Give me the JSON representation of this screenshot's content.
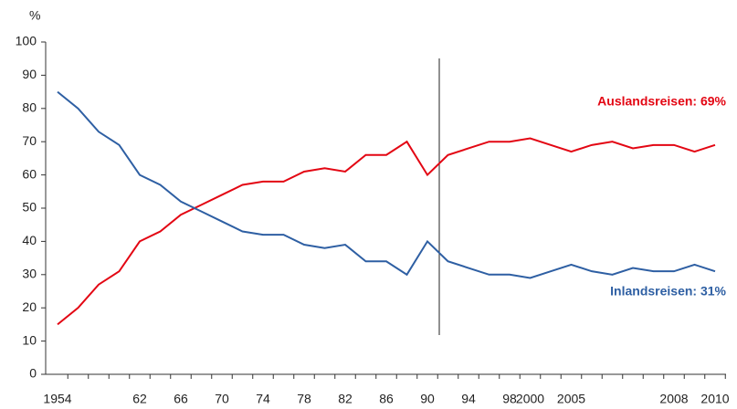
{
  "chart_data": {
    "type": "line",
    "y_label": "%",
    "categories": [
      "1954",
      null,
      null,
      null,
      "62",
      null,
      "66",
      null,
      "70",
      null,
      "74",
      null,
      "78",
      null,
      "82",
      null,
      "86",
      null,
      "90",
      null,
      "94",
      null,
      "98",
      "2000",
      null,
      "2005",
      null,
      null,
      null,
      null,
      "2008",
      null,
      "2010"
    ],
    "series": [
      {
        "name": "Auslandsreisen: 69%",
        "color": "#e30613",
        "values": [
          15,
          20,
          27,
          31,
          40,
          43,
          48,
          51,
          54,
          57,
          58,
          58,
          61,
          62,
          61,
          66,
          66,
          70,
          60,
          66,
          68,
          70,
          70,
          71,
          69,
          67,
          69,
          70,
          68,
          69,
          69,
          67,
          69
        ]
      },
      {
        "name": "Inlandsreisen: 31%",
        "color": "#2e5fa3",
        "values": [
          85,
          80,
          73,
          69,
          60,
          57,
          52,
          49,
          46,
          43,
          42,
          42,
          39,
          38,
          39,
          34,
          34,
          30,
          40,
          34,
          32,
          30,
          30,
          29,
          31,
          33,
          31,
          30,
          32,
          31,
          31,
          33,
          31
        ]
      }
    ],
    "ylim": [
      0,
      100
    ],
    "yticks": [
      0,
      10,
      20,
      30,
      40,
      50,
      60,
      70,
      80,
      90,
      100
    ]
  }
}
